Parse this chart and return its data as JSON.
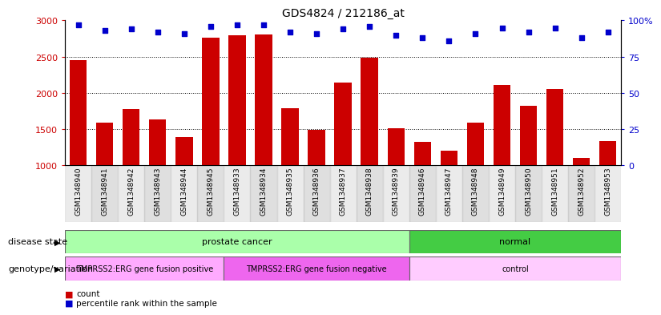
{
  "title": "GDS4824 / 212186_at",
  "samples": [
    "GSM1348940",
    "GSM1348941",
    "GSM1348942",
    "GSM1348943",
    "GSM1348944",
    "GSM1348945",
    "GSM1348933",
    "GSM1348934",
    "GSM1348935",
    "GSM1348936",
    "GSM1348937",
    "GSM1348938",
    "GSM1348939",
    "GSM1348946",
    "GSM1348947",
    "GSM1348948",
    "GSM1348949",
    "GSM1348950",
    "GSM1348951",
    "GSM1348952",
    "GSM1348953"
  ],
  "counts": [
    2450,
    1590,
    1780,
    1630,
    1390,
    2760,
    2800,
    2810,
    1790,
    1490,
    2140,
    2490,
    1510,
    1320,
    1200,
    1590,
    2110,
    1820,
    2050,
    1100,
    1340
  ],
  "percentile_ranks": [
    97,
    93,
    94,
    92,
    91,
    96,
    97,
    97,
    92,
    91,
    94,
    96,
    90,
    88,
    86,
    91,
    95,
    92,
    95,
    88,
    92
  ],
  "bar_color": "#cc0000",
  "dot_color": "#0000cc",
  "ylim_left": [
    1000,
    3000
  ],
  "ylim_right": [
    0,
    100
  ],
  "yticks_left": [
    1000,
    1500,
    2000,
    2500,
    3000
  ],
  "ytick_labels_left": [
    "1000",
    "1500",
    "2000",
    "2500",
    "3000"
  ],
  "yticks_right": [
    0,
    25,
    50,
    75,
    100
  ],
  "ytick_labels_right": [
    "0",
    "25",
    "50",
    "75",
    "100%"
  ],
  "disease_state_groups": [
    {
      "label": "prostate cancer",
      "start": 0,
      "end": 12,
      "color": "#aaffaa"
    },
    {
      "label": "normal",
      "start": 13,
      "end": 20,
      "color": "#44cc44"
    }
  ],
  "genotype_groups": [
    {
      "label": "TMPRSS2:ERG gene fusion positive",
      "start": 0,
      "end": 5,
      "color": "#ffaaff"
    },
    {
      "label": "TMPRSS2:ERG gene fusion negative",
      "start": 6,
      "end": 12,
      "color": "#ee66ee"
    },
    {
      "label": "control",
      "start": 13,
      "end": 20,
      "color": "#ffccff"
    }
  ],
  "disease_state_label": "disease state",
  "genotype_label": "genotype/variation",
  "legend_count_label": "count",
  "legend_percentile_label": "percentile rank within the sample",
  "bg_color": "#ffffff",
  "tick_area_bg": "#c8c8c8"
}
